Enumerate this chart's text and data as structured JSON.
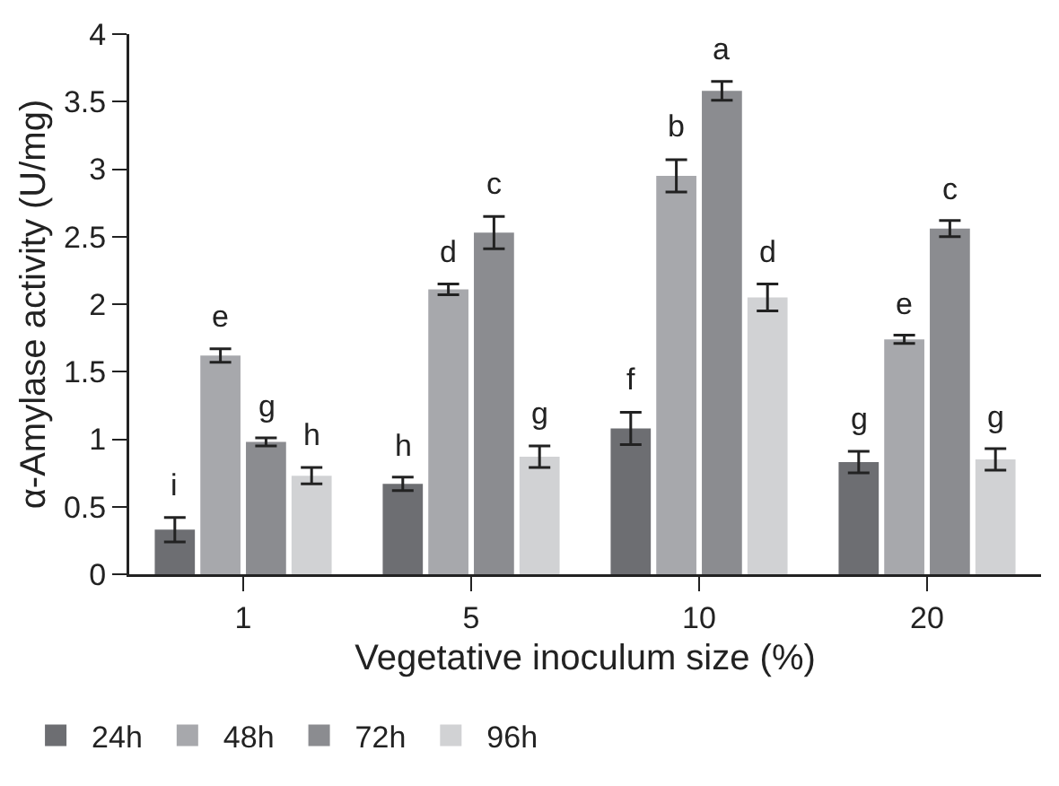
{
  "chart_data": {
    "type": "bar",
    "xlabel": "Vegetative inoculum size (%)",
    "ylabel": "α-Amylase activity (U/mg)",
    "categories": [
      "1",
      "5",
      "10",
      "20"
    ],
    "series": [
      {
        "name": "24h",
        "color": "#6d6e72",
        "values": [
          0.33,
          0.67,
          1.08,
          0.83
        ],
        "errors": [
          0.09,
          0.05,
          0.12,
          0.08
        ]
      },
      {
        "name": "48h",
        "color": "#a7a8ac",
        "values": [
          1.62,
          2.11,
          2.95,
          1.74
        ],
        "errors": [
          0.05,
          0.04,
          0.12,
          0.03
        ]
      },
      {
        "name": "72h",
        "color": "#8b8c90",
        "values": [
          0.98,
          2.53,
          3.58,
          2.56
        ],
        "errors": [
          0.03,
          0.12,
          0.07,
          0.06
        ]
      },
      {
        "name": "96h",
        "color": "#d1d2d4",
        "values": [
          0.73,
          0.87,
          2.05,
          0.85
        ],
        "errors": [
          0.06,
          0.08,
          0.1,
          0.08
        ]
      }
    ],
    "ylim": [
      0,
      4
    ],
    "yticks": [
      0,
      0.5,
      1,
      1.5,
      2,
      2.5,
      3,
      3.5,
      4
    ],
    "grid": false,
    "legend": "bottom left",
    "annotations": [
      {
        "text": "i",
        "x": "1",
        "y": 0.33
      },
      {
        "text": "e",
        "x": "1",
        "y": 1.62
      },
      {
        "text": "g",
        "x": "1",
        "y": 0.98
      },
      {
        "text": "h",
        "x": "1",
        "y": 0.73
      },
      {
        "text": "h",
        "x": "5",
        "y": 0.67
      },
      {
        "text": "d",
        "x": "5",
        "y": 2.11
      },
      {
        "text": "c",
        "x": "5",
        "y": 2.53
      },
      {
        "text": "g",
        "x": "5",
        "y": 0.87
      },
      {
        "text": "f",
        "x": "10",
        "y": 1.08
      },
      {
        "text": "b",
        "x": "10",
        "y": 2.95
      },
      {
        "text": "a",
        "x": "10",
        "y": 3.58
      },
      {
        "text": "d",
        "x": "10",
        "y": 2.05
      },
      {
        "text": "g",
        "x": "20",
        "y": 0.83
      },
      {
        "text": "e",
        "x": "20",
        "y": 1.74
      },
      {
        "text": "c",
        "x": "20",
        "y": 2.56
      },
      {
        "text": "g",
        "x": "20",
        "y": 0.85
      }
    ]
  }
}
